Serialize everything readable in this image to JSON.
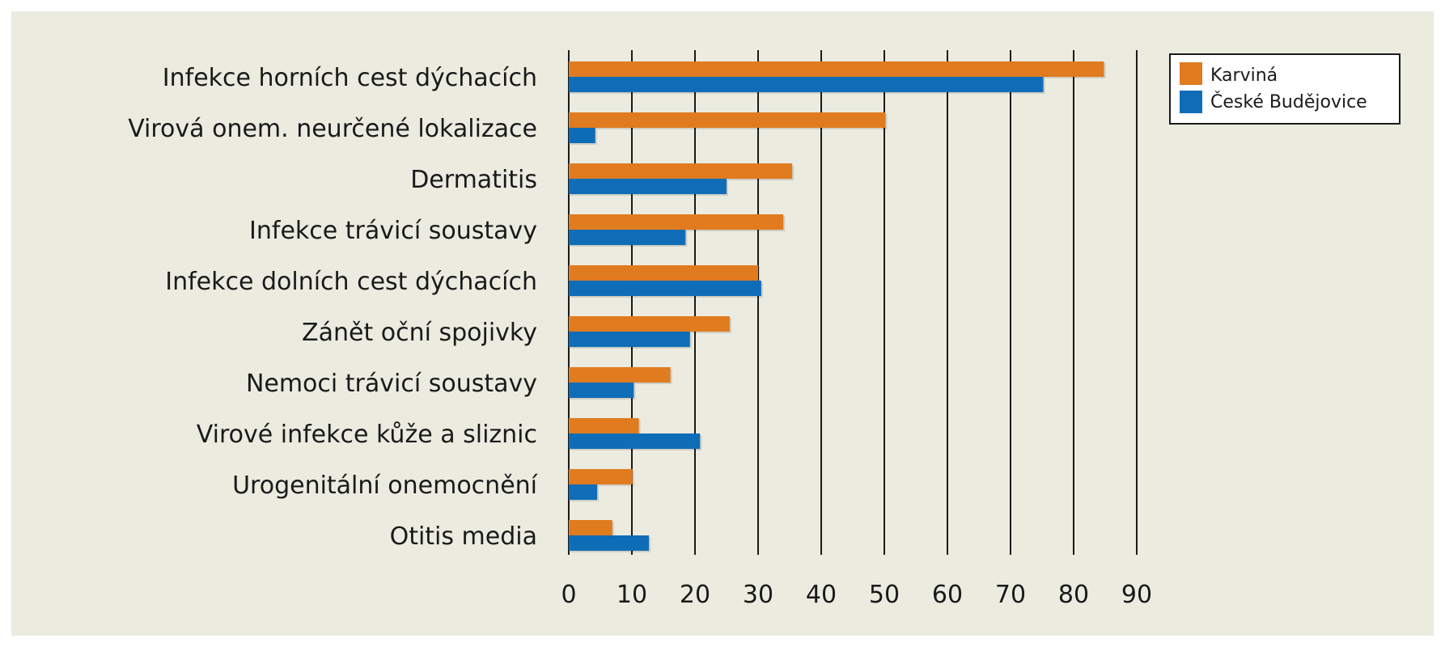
{
  "chart_data": {
    "type": "bar",
    "orientation": "horizontal",
    "categories": [
      "Infekce horních cest dýchacích",
      "Virová onem. neurčené lokalizace",
      "Dermatitis",
      "Infekce trávicí soustavy",
      "Infekce dolních cest dýchacích",
      "Zánět oční spojivky",
      "Nemoci trávicí soustavy",
      "Virové infekce kůže a sliznic",
      "Urogenitální onemocnění",
      "Otitis media"
    ],
    "series": [
      {
        "name": "Karviná",
        "color": "#e07b1f",
        "values": [
          84.8,
          50.2,
          35.4,
          34.0,
          30.0,
          25.5,
          16.1,
          11.1,
          10.1,
          6.9
        ]
      },
      {
        "name": "České Budějovice",
        "color": "#0f6db8",
        "values": [
          75.2,
          4.2,
          25.0,
          18.5,
          30.5,
          19.2,
          10.3,
          20.8,
          4.5,
          12.7
        ]
      }
    ],
    "x_ticks": [
      "0",
      "10",
      "20",
      "30",
      "40",
      "50",
      "60",
      "70",
      "80",
      "90"
    ],
    "xlim": [
      0,
      90
    ],
    "grid": "vertical",
    "legend_position": "top-right",
    "title": "",
    "xlabel": "",
    "ylabel": ""
  }
}
